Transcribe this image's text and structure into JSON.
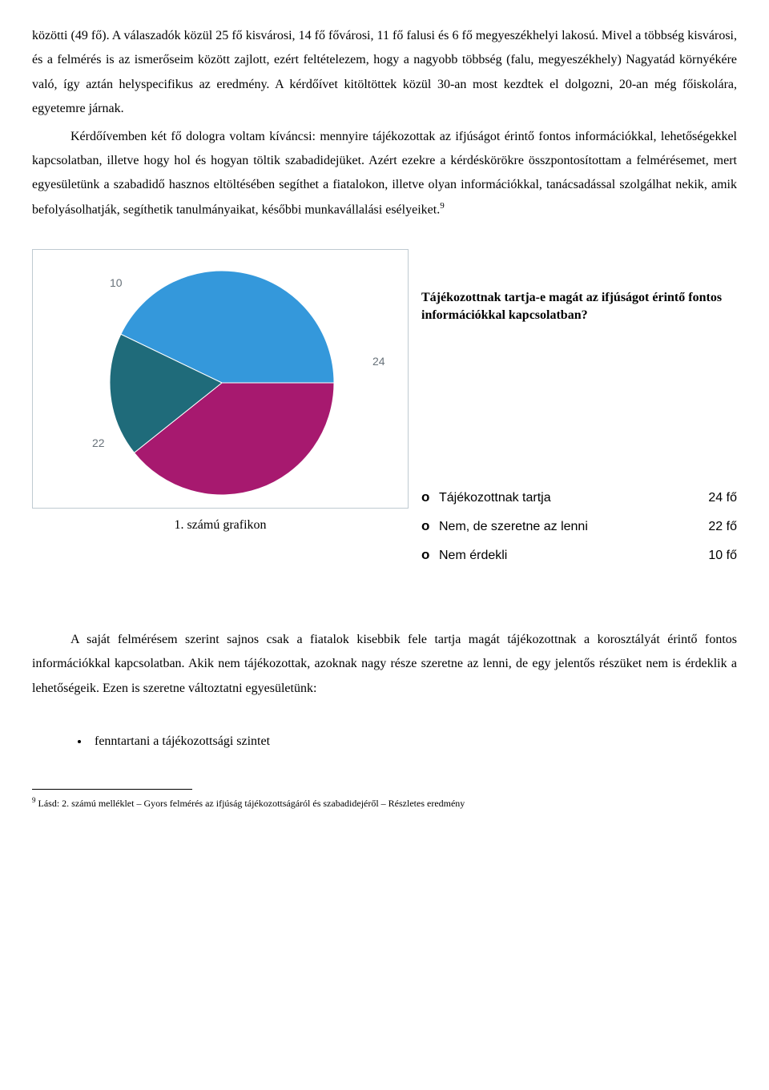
{
  "paragraphs": {
    "p1": "közötti (49 fő). A válaszadók közül 25 fő kisvárosi, 14 fő fővárosi, 11 fő falusi és 6 fő megyeszékhelyi lakosú. Mivel a többség kisvárosi, és a felmérés is az ismerőseim között zajlott, ezért feltételezem, hogy a nagyobb többség (falu, megyeszékhely) Nagyatád környékére való, így aztán helyspecifikus az eredmény. A kérdőívet kitöltöttek közül 30-an most kezdtek el dolgozni, 20-an még főiskolára, egyetemre járnak.",
    "p2": "Kérdőívemben két fő dologra voltam kíváncsi: mennyire tájékozottak az ifjúságot érintő fontos információkkal, lehetőségekkel kapcsolatban, illetve hogy hol és hogyan töltik szabadidejüket. Azért ezekre a kérdéskörökre összpontosítottam a felmérésemet, mert egyesületünk a szabadidő hasznos eltöltésében segíthet a fiatalokon, illetve olyan információkkal, tanácsadással szolgálhat nekik, amik befolyásolhatják, segíthetik tanulmányaikat, későbbi munkavállalási esélyeiket.",
    "p2_footref": "9",
    "p3": "A saját felmérésem szerint sajnos csak a fiatalok kisebbik fele tartja magát tájékozottnak a korosztályát érintő fontos információkkal kapcsolatban. Akik nem tájékozottak, azoknak nagy része szeretne az lenni, de egy jelentős részüket nem is érdeklik a lehetőségeik. Ezen is szeretne változtatni egyesületünk:"
  },
  "chart": {
    "type": "pie",
    "question": "Tájékozottnak tartja-e magát az ifjúságot érintő fontos információkkal kapcsolatban?",
    "caption": "1. számú grafikon",
    "values": [
      24,
      22,
      10
    ],
    "labels": [
      "24",
      "22",
      "10"
    ],
    "slice_colors": [
      "#3498db",
      "#a7196f",
      "#1f6b7a"
    ],
    "background_color": "#ffffff",
    "border_color": "#bfcad1",
    "label_color": "#68727a",
    "legend": [
      {
        "marker": "o",
        "label": "Tájékozottnak tartja",
        "count": "24 fő"
      },
      {
        "marker": "o",
        "label": "Nem, de szeretne az lenni",
        "count": "22 fő"
      },
      {
        "marker": "o",
        "label": "Nem érdekli",
        "count": "10 fő"
      }
    ]
  },
  "bullets": {
    "b1": "fenntartani a tájékozottsági szintet"
  },
  "footnote": {
    "num": "9",
    "text": " Lásd: 2. számú melléklet – Gyors felmérés az ifjúság tájékozottságáról és szabadidejéről – Részletes eredmény"
  }
}
